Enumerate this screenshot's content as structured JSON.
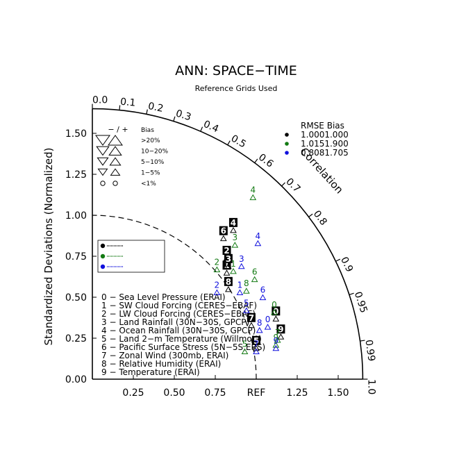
{
  "chart_data": {
    "type": "taylor-diagram",
    "title": "ANN: SPACE−TIME",
    "subtitle": "Reference Grids Used",
    "ylabel": "Standardized Deviations (Normalized)",
    "correlation_label": "Correlation",
    "ref_label": "REF",
    "x_ticks": [
      "0.25",
      "0.50",
      "0.75",
      "REF",
      "1.25",
      "1.50"
    ],
    "x_tick_values": [
      0.25,
      0.5,
      0.75,
      1.0,
      1.25,
      1.5
    ],
    "y_ticks": [
      "0.00",
      "0.25",
      "0.50",
      "0.75",
      "1.00",
      "1.25",
      "1.50"
    ],
    "y_tick_values": [
      0,
      0.25,
      0.5,
      0.75,
      1.0,
      1.25,
      1.5
    ],
    "std_max": 1.65,
    "corr_ticks": [
      "0.0",
      "0.1",
      "0.2",
      "0.3",
      "0.4",
      "0.5",
      "0.6",
      "0.7",
      "0.8",
      "0.9",
      "0.95",
      "0.99",
      "1.0"
    ],
    "corr_tick_values": [
      0,
      0.1,
      0.2,
      0.3,
      0.4,
      0.5,
      0.6,
      0.7,
      0.8,
      0.9,
      0.95,
      0.99,
      1.0
    ],
    "bias_legend": {
      "header_sign": "− / +",
      "header_label": "Bias",
      "rows": [
        {
          "label": ">20%",
          "size": 1.0
        },
        {
          "label": "10−20%",
          "size": 0.8
        },
        {
          "label": "5−10%",
          "size": 0.6
        },
        {
          "label": "1−5%",
          "size": 0.42
        },
        {
          "label": "<1%",
          "size": 0.0
        }
      ]
    },
    "rmse_table": {
      "header": "RMSE  Bias",
      "rows": [
        {
          "color": "#000000",
          "text": "1.0001.000"
        },
        {
          "color": "#137a13",
          "text": "1.0151.900"
        },
        {
          "color": "#1111dd",
          "text": "0.8081.705"
        }
      ]
    },
    "variables": [
      "0 − Sea Level Pressure (ERAI)",
      "1 − SW Cloud Forcing (CERES−EBAF)",
      "2 − LW Cloud Forcing (CERES−EBAF)",
      "3 − Land Rainfall (30N−30S, GPCP)",
      "4 − Ocean Rainfall (30N−30S, GPCP)",
      "5 − Land 2−m Temperature (Willmott)",
      "6 − Pacific Surface Stress (5N−5S,ERS)",
      "7 − Zonal Wind (300mb, ERAI)",
      "8 − Relative Humidity (ERAI)",
      "9 − Temperature (ERAI)"
    ],
    "series": [
      {
        "color": "#000000",
        "points": [
          {
            "label": "0",
            "x": 1.12,
            "y": 0.38
          },
          {
            "label": "1",
            "x": 0.82,
            "y": 0.66
          },
          {
            "label": "2",
            "x": 0.82,
            "y": 0.75
          },
          {
            "label": "3",
            "x": 0.83,
            "y": 0.7
          },
          {
            "label": "4",
            "x": 0.86,
            "y": 0.92
          },
          {
            "label": "5",
            "x": 1.0,
            "y": 0.2
          },
          {
            "label": "6",
            "x": 0.8,
            "y": 0.87
          },
          {
            "label": "7",
            "x": 0.97,
            "y": 0.34
          },
          {
            "label": "8",
            "x": 0.83,
            "y": 0.56
          },
          {
            "label": "9",
            "x": 1.15,
            "y": 0.27
          }
        ]
      },
      {
        "color": "#137a13",
        "points": [
          {
            "label": "0",
            "x": 1.11,
            "y": 0.42
          },
          {
            "label": "1",
            "x": 0.86,
            "y": 0.67
          },
          {
            "label": "2",
            "x": 0.76,
            "y": 0.68
          },
          {
            "label": "3",
            "x": 0.87,
            "y": 0.83
          },
          {
            "label": "4",
            "x": 0.98,
            "y": 1.12
          },
          {
            "label": "5",
            "x": 0.93,
            "y": 0.18
          },
          {
            "label": "6",
            "x": 0.99,
            "y": 0.62
          },
          {
            "label": "7",
            "x": 1.13,
            "y": 0.25
          },
          {
            "label": "8",
            "x": 0.94,
            "y": 0.55
          },
          {
            "label": "9",
            "x": 1.12,
            "y": 0.22
          }
        ]
      },
      {
        "color": "#1111dd",
        "points": [
          {
            "label": "0",
            "x": 1.07,
            "y": 0.33
          },
          {
            "label": "1",
            "x": 0.9,
            "y": 0.54
          },
          {
            "label": "2",
            "x": 0.76,
            "y": 0.54
          },
          {
            "label": "3",
            "x": 0.91,
            "y": 0.7
          },
          {
            "label": "4",
            "x": 1.01,
            "y": 0.84
          },
          {
            "label": "5",
            "x": 0.94,
            "y": 0.43
          },
          {
            "label": "6",
            "x": 1.04,
            "y": 0.51
          },
          {
            "label": "7",
            "x": 1.0,
            "y": 0.18
          },
          {
            "label": "8",
            "x": 1.02,
            "y": 0.31
          },
          {
            "label": "9",
            "x": 1.12,
            "y": 0.2
          }
        ]
      }
    ]
  }
}
